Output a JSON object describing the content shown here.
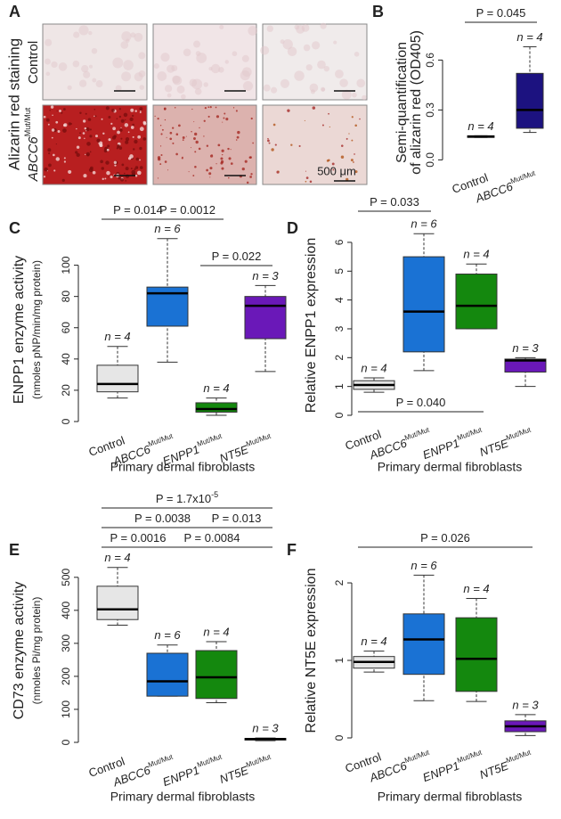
{
  "panel_a": {
    "panel": "A",
    "title": "Alizarin red staining",
    "rows": [
      {
        "name": "Control"
      },
      {
        "name": "ABCC6",
        "sup": "Mut/Mut"
      }
    ],
    "scale_bar": "500 μm"
  },
  "chart_data": [
    {
      "panel": "B",
      "type": "box",
      "ylabel": [
        "Semi-quantification",
        "of alizarin red (OD405)"
      ],
      "categories": [
        {
          "name": "Control"
        },
        {
          "name": "ABCC6",
          "sup": "Mut/Mut"
        }
      ],
      "colors": [
        "#e6e6e6",
        "#1c1280"
      ],
      "min": [
        0.135,
        0.165
      ],
      "q1": [
        0.135,
        0.19
      ],
      "median": [
        0.14,
        0.3
      ],
      "q3": [
        0.145,
        0.52
      ],
      "max": [
        0.145,
        0.68
      ],
      "n_labels": [
        "n = 4",
        "n = 4"
      ],
      "ylim": [
        -0.03,
        0.72
      ],
      "yticks": [
        {
          "value": 0,
          "label": "0.0"
        },
        0.3,
        0.6
      ],
      "comparisons": [
        {
          "label": "P = 0.045",
          "groups": [
            0,
            1
          ]
        }
      ]
    },
    {
      "panel": "C",
      "type": "box",
      "ylabel": [
        "ENPP1 enzyme activity",
        "(nmoles pNP/min/mg protein)"
      ],
      "xlabel": "Primary dermal fibroblasts",
      "categories": [
        {
          "name": "Control"
        },
        {
          "name": "ABCC6",
          "sup": "Mut/Mut"
        },
        {
          "name": "ENPP1",
          "sup": "Mut/Mut"
        },
        {
          "name": "NT5E",
          "sup": "Mut/Mut"
        }
      ],
      "colors": [
        "#e6e6e6",
        "#1a72d4",
        "#14880e",
        "#6a18b8"
      ],
      "min": [
        15,
        38,
        4,
        32
      ],
      "q1": [
        19,
        61,
        6,
        53
      ],
      "median": [
        24,
        82,
        8,
        74
      ],
      "q3": [
        36,
        86,
        12,
        80
      ],
      "max": [
        48,
        117,
        15,
        87
      ],
      "n_labels": [
        "n = 4",
        "n = 6",
        "n = 4",
        "n = 3"
      ],
      "ylim": [
        0,
        118
      ],
      "yticks": [
        0,
        20,
        40,
        60,
        80,
        100
      ],
      "comparisons": [
        {
          "label": "P = 0.014",
          "groups": [
            0,
            1
          ]
        },
        {
          "label": "P = 0.0012",
          "groups": [
            1,
            2
          ]
        },
        {
          "label": "P = 0.022",
          "groups": [
            2,
            3
          ]
        }
      ]
    },
    {
      "panel": "D",
      "type": "box",
      "ylabel": [
        "Relative ENPP1 expression"
      ],
      "xlabel": "Primary dermal fibroblasts",
      "categories": [
        {
          "name": "Control"
        },
        {
          "name": "ABCC6",
          "sup": "Mut/Mut"
        },
        {
          "name": "ENPP1",
          "sup": "Mut/Mut"
        },
        {
          "name": "NT5E",
          "sup": "Mut/Mut"
        }
      ],
      "colors": [
        "#e6e6e6",
        "#1a72d4",
        "#14880e",
        "#6a18b8"
      ],
      "min": [
        0.8,
        1.55,
        3.0,
        1.0
      ],
      "q1": [
        0.9,
        2.2,
        3.0,
        1.5
      ],
      "median": [
        1.05,
        3.6,
        3.8,
        1.9
      ],
      "q3": [
        1.2,
        5.5,
        4.9,
        1.95
      ],
      "max": [
        1.3,
        6.3,
        5.25,
        2.0
      ],
      "n_labels": [
        "n = 4",
        "n = 6",
        "n = 4",
        "n = 3"
      ],
      "ylim": [
        0,
        6.4
      ],
      "yticks": [
        0,
        1,
        2,
        3,
        4,
        5,
        6
      ],
      "comparisons": [
        {
          "label": "P = 0.033",
          "groups": [
            0,
            1
          ]
        },
        {
          "label": "P = 0.040",
          "groups": [
            0,
            2
          ]
        }
      ]
    },
    {
      "panel": "E",
      "type": "box",
      "ylabel": [
        "CD73 enzyme activity",
        "(nmoles Pi/mg protein)"
      ],
      "xlabel": "Primary dermal fibroblasts",
      "categories": [
        {
          "name": "Control"
        },
        {
          "name": "ABCC6",
          "sup": "Mut/Mut"
        },
        {
          "name": "ENPP1",
          "sup": "Mut/Mut"
        },
        {
          "name": "NT5E",
          "sup": "Mut/Mut"
        }
      ],
      "colors": [
        "#e6e6e6",
        "#1a72d4",
        "#14880e",
        "#6a18b8"
      ],
      "min": [
        355,
        140,
        120,
        5
      ],
      "q1": [
        372,
        140,
        133,
        7
      ],
      "median": [
        403,
        185,
        197,
        10
      ],
      "q3": [
        473,
        270,
        278,
        12
      ],
      "max": [
        530,
        295,
        305,
        13
      ],
      "n_labels": [
        "n = 4",
        "n = 6",
        "n = 4",
        "n = 3"
      ],
      "ylim": [
        0,
        540
      ],
      "yticks": [
        0,
        100,
        200,
        300,
        400,
        500
      ],
      "comparisons": [
        {
          "label": "P = 1.7x10",
          "sup": "-5",
          "groups": [
            0,
            3
          ]
        },
        {
          "label": "P = 0.0038",
          "groups": [
            0,
            2
          ]
        },
        {
          "label": "P = 0.013",
          "groups": [
            2,
            3
          ]
        },
        {
          "label": "P = 0.0016",
          "groups": [
            0,
            1
          ]
        },
        {
          "label": "P = 0.0084",
          "groups": [
            1,
            3
          ]
        }
      ]
    },
    {
      "panel": "F",
      "type": "box",
      "ylabel": [
        "Relative NT5E expression"
      ],
      "xlabel": "Primary dermal fibroblasts",
      "categories": [
        {
          "name": "Control"
        },
        {
          "name": "ABCC6",
          "sup": "Mut/Mut"
        },
        {
          "name": "ENPP1",
          "sup": "Mut/Mut"
        },
        {
          "name": "NT5E",
          "sup": "Mut/Mut"
        }
      ],
      "colors": [
        "#e6e6e6",
        "#1a72d4",
        "#14880e",
        "#6a18b8"
      ],
      "min": [
        0.85,
        0.48,
        0.47,
        0.03
      ],
      "q1": [
        0.9,
        0.82,
        0.6,
        0.08
      ],
      "median": [
        0.98,
        1.27,
        1.02,
        0.15
      ],
      "q3": [
        1.05,
        1.6,
        1.55,
        0.22
      ],
      "max": [
        1.12,
        2.1,
        1.8,
        0.3
      ],
      "n_labels": [
        "n = 4",
        "n = 6",
        "n = 4",
        "n = 3"
      ],
      "ylim": [
        0,
        2.15
      ],
      "yticks": [
        0,
        1,
        2
      ],
      "comparisons": [
        {
          "label": "P = 0.026",
          "groups": [
            0,
            3
          ]
        }
      ]
    }
  ]
}
